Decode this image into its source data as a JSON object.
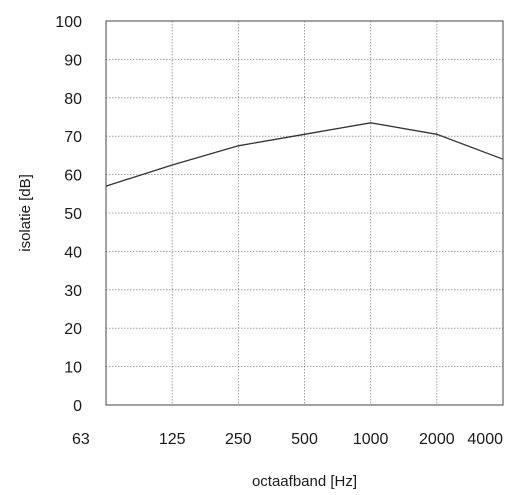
{
  "chart_data": {
    "type": "line",
    "x": [
      "63",
      "125",
      "250",
      "500",
      "1000",
      "2000",
      "4000"
    ],
    "series": [
      {
        "values": [
          57,
          62.5,
          67.5,
          70.5,
          73.5,
          70.5,
          64
        ]
      }
    ],
    "xlabel": "octaafband [Hz]",
    "ylabel": "isolatie [dB]",
    "ylim": [
      0,
      100
    ],
    "yticks": [
      "0",
      "10",
      "20",
      "30",
      "40",
      "50",
      "60",
      "70",
      "80",
      "90",
      "100"
    ],
    "grid": true,
    "legend": "none",
    "line_color": "#333333",
    "grid_color": "#8a8a8a"
  }
}
